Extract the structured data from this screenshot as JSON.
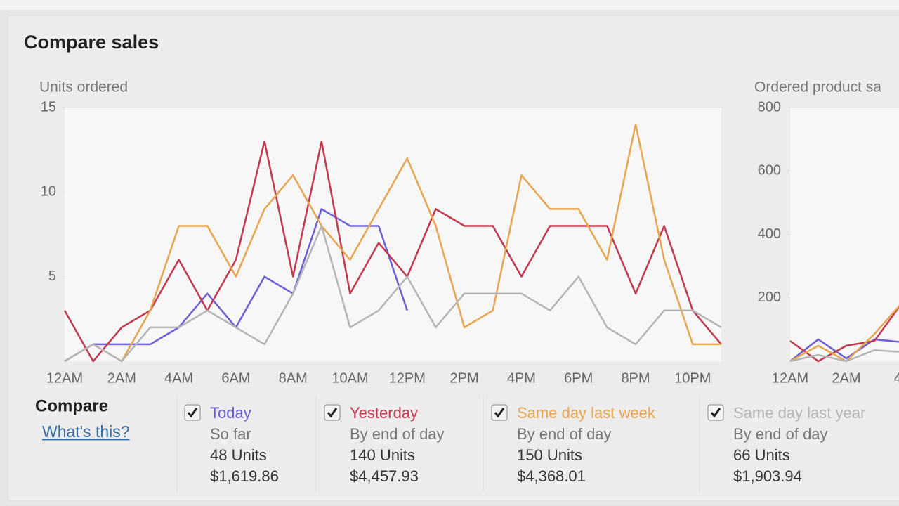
{
  "title": "Compare sales",
  "chart_data": [
    {
      "type": "line",
      "y_label": "Units ordered",
      "categories": [
        "12AM",
        null,
        "2AM",
        null,
        "4AM",
        null,
        "6AM",
        null,
        "8AM",
        null,
        "10AM",
        null,
        "12PM",
        null,
        "2PM",
        null,
        "4PM",
        null,
        "6PM",
        null,
        "8PM",
        null,
        "10PM",
        null
      ],
      "ylim": [
        0,
        15
      ],
      "yticks": [
        5,
        10,
        15
      ],
      "series": [
        {
          "name": "Today",
          "color": "#6a5fd6",
          "values": [
            0,
            1,
            1,
            1,
            2,
            4,
            2,
            5,
            4,
            9,
            8,
            8,
            3,
            null,
            null,
            null,
            null,
            null,
            null,
            null,
            null,
            null,
            null,
            null
          ]
        },
        {
          "name": "Yesterday",
          "color": "#c0394e",
          "values": [
            3,
            0,
            2,
            3,
            6,
            3,
            6,
            13,
            5,
            13,
            4,
            7,
            5,
            9,
            8,
            8,
            5,
            8,
            8,
            8,
            4,
            8,
            3,
            1
          ]
        },
        {
          "name": "Same day last week",
          "color": "#e8a550",
          "values": [
            0,
            1,
            0,
            3,
            8,
            8,
            5,
            9,
            11,
            8,
            6,
            9,
            12,
            8,
            2,
            3,
            11,
            9,
            9,
            6,
            14,
            6,
            1,
            1
          ]
        },
        {
          "name": "Same day last year",
          "color": "#b5b5b5",
          "values": [
            0,
            1,
            0,
            2,
            2,
            3,
            2,
            1,
            4,
            8,
            2,
            3,
            5,
            2,
            4,
            4,
            4,
            3,
            5,
            2,
            1,
            3,
            3,
            2
          ]
        }
      ]
    },
    {
      "type": "line",
      "y_label": "Ordered product sa",
      "categories": [
        "12AM",
        null,
        "2AM",
        null,
        "4A"
      ],
      "ylim": [
        0,
        800
      ],
      "yticks": [
        200,
        400,
        600,
        800
      ],
      "series": [
        {
          "name": "Today",
          "color": "#6a5fd6",
          "values": [
            0,
            69,
            9,
            69,
            60
          ]
        },
        {
          "name": "Yesterday",
          "color": "#c0394e",
          "values": [
            64,
            0,
            49,
            64,
            186
          ]
        },
        {
          "name": "Same day last week",
          "color": "#e8a550",
          "values": [
            0,
            49,
            0,
            86,
            186
          ]
        },
        {
          "name": "Same day last year",
          "color": "#b5b5b5",
          "values": [
            0,
            20,
            0,
            35,
            29
          ]
        }
      ]
    }
  ],
  "compare": {
    "heading": "Compare",
    "link": "What's this?",
    "items": [
      {
        "sub": "So far",
        "units": "48 Units",
        "amount": "$1,619.86"
      },
      {
        "sub": "By end of day",
        "units": "140 Units",
        "amount": "$4,457.93"
      },
      {
        "sub": "By end of day",
        "units": "150 Units",
        "amount": "$4,368.01"
      },
      {
        "sub": "By end of day",
        "units": "66 Units",
        "amount": "$1,903.94"
      }
    ]
  }
}
